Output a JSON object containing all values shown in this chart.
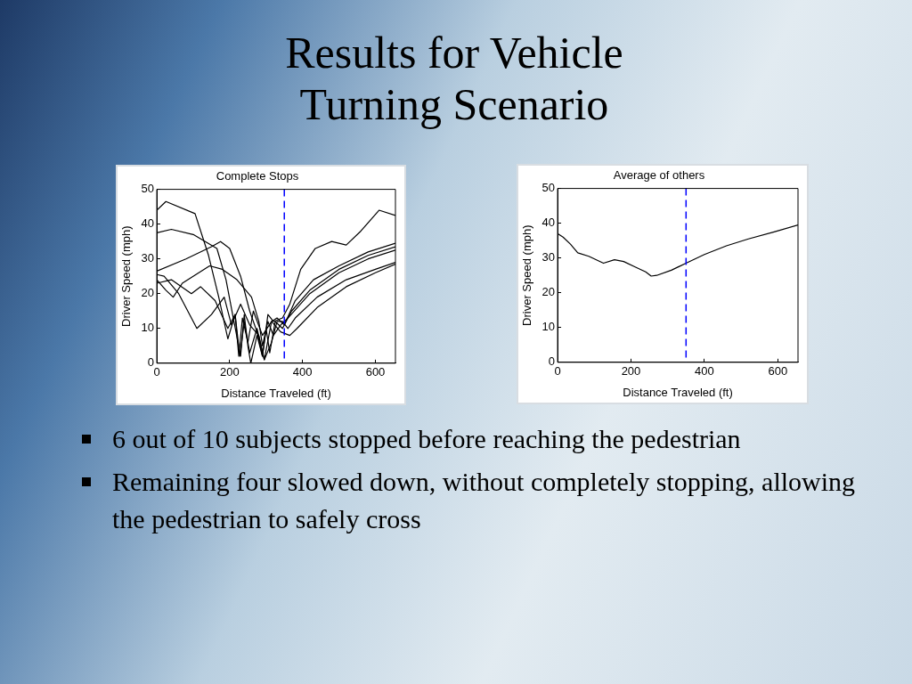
{
  "chart_data": [
    {
      "type": "other",
      "title": "Results for Vehicle Turning Scenario",
      "annotations": [
        "6 out of 10 subjects stopped before reaching the pedestrian",
        "Remaining four slowed down, without completely stopping, allowing the pedestrian to safely cross"
      ]
    },
    {
      "type": "line",
      "title": "Complete Stops",
      "xlabel": "Distance Traveled (ft)",
      "ylabel": "Driver Speed (mph)",
      "xlim": [
        0,
        655
      ],
      "xticks": [
        0,
        200,
        400,
        600
      ],
      "ylim": [
        0,
        50
      ],
      "yticks": [
        0,
        10,
        20,
        30,
        40,
        50
      ],
      "grid": false,
      "legend": false,
      "marker": "none",
      "line_style": "solid",
      "ref_lines": [
        {
          "axis": "x",
          "value": 350,
          "color": "#0000ff",
          "line_style": "dashed"
        }
      ],
      "series": [
        {
          "color": "#000000",
          "x": [
            0,
            25,
            105,
            142,
            170,
            195,
            215,
            228,
            240,
            255,
            275,
            295,
            315,
            330,
            350,
            380,
            430,
            500,
            580,
            655
          ],
          "values": [
            44,
            46.5,
            43,
            31,
            19,
            7,
            14,
            2,
            12,
            3,
            10,
            1,
            12,
            13,
            11,
            18,
            24,
            28,
            32,
            34.5
          ]
        },
        {
          "color": "#000000",
          "x": [
            0,
            40,
            100,
            165,
            190,
            210,
            230,
            240,
            250,
            258,
            275,
            290,
            305,
            320,
            345,
            365,
            395,
            435,
            480,
            520,
            560,
            610,
            655
          ],
          "values": [
            37.5,
            38.5,
            37,
            33,
            24,
            13,
            2,
            14,
            5,
            0,
            8,
            2,
            14,
            12,
            13,
            17,
            27,
            33,
            35,
            34,
            38,
            44,
            42.5
          ]
        },
        {
          "color": "#000000",
          "x": [
            0,
            80,
            150,
            175,
            200,
            230,
            255,
            275,
            290,
            300,
            310,
            325,
            345,
            370,
            420,
            500,
            580,
            655
          ],
          "values": [
            26.5,
            30,
            33.5,
            35,
            33,
            25,
            15,
            9,
            2,
            10,
            3,
            12,
            10,
            15,
            21,
            27,
            31,
            33.5
          ]
        },
        {
          "color": "#000000",
          "x": [
            0,
            25,
            45,
            70,
            145,
            180,
            220,
            260,
            280,
            290,
            305,
            320,
            340,
            360,
            420,
            500,
            580,
            655
          ],
          "values": [
            24,
            21,
            19,
            23,
            28,
            27,
            24,
            19,
            12,
            5,
            12,
            8,
            11,
            13,
            20,
            26,
            30,
            32.5
          ]
        },
        {
          "color": "#000000",
          "x": [
            0,
            20,
            60,
            110,
            150,
            185,
            205,
            230,
            255,
            280,
            295,
            315,
            330,
            345,
            360,
            380,
            440,
            520,
            600,
            655
          ],
          "values": [
            25.5,
            25,
            20,
            10,
            14,
            19,
            11,
            17,
            11,
            8,
            1,
            6,
            12,
            12,
            10,
            13,
            19,
            24,
            27,
            29
          ]
        },
        {
          "color": "#000000",
          "x": [
            0,
            40,
            95,
            120,
            160,
            195,
            215,
            225,
            235,
            250,
            265,
            290,
            315,
            340,
            365,
            385,
            440,
            520,
            600,
            655
          ],
          "values": [
            23,
            24,
            20,
            22,
            18,
            10,
            14,
            2,
            13,
            6,
            15,
            8,
            12,
            9,
            8,
            10,
            16,
            22,
            26,
            28.5
          ]
        }
      ]
    },
    {
      "type": "line",
      "title": "Average of others",
      "xlabel": "Distance Traveled (ft)",
      "ylabel": "Driver Speed (mph)",
      "xlim": [
        0,
        655
      ],
      "xticks": [
        0,
        200,
        400,
        600
      ],
      "ylim": [
        0,
        50
      ],
      "yticks": [
        0,
        10,
        20,
        30,
        40,
        50
      ],
      "grid": false,
      "legend": false,
      "marker": "none",
      "line_style": "solid",
      "ref_lines": [
        {
          "axis": "x",
          "value": 350,
          "color": "#0000ff",
          "line_style": "dashed"
        }
      ],
      "series": [
        {
          "color": "#000000",
          "x": [
            0,
            15,
            35,
            55,
            85,
            125,
            155,
            180,
            210,
            240,
            255,
            270,
            310,
            350,
            400,
            460,
            520,
            590,
            655
          ],
          "values": [
            37,
            36,
            34,
            31.5,
            30.5,
            28.5,
            29.5,
            29,
            27.5,
            26,
            24.8,
            25,
            26.5,
            28.5,
            31,
            33.5,
            35.5,
            37.5,
            39.5
          ]
        }
      ]
    }
  ]
}
